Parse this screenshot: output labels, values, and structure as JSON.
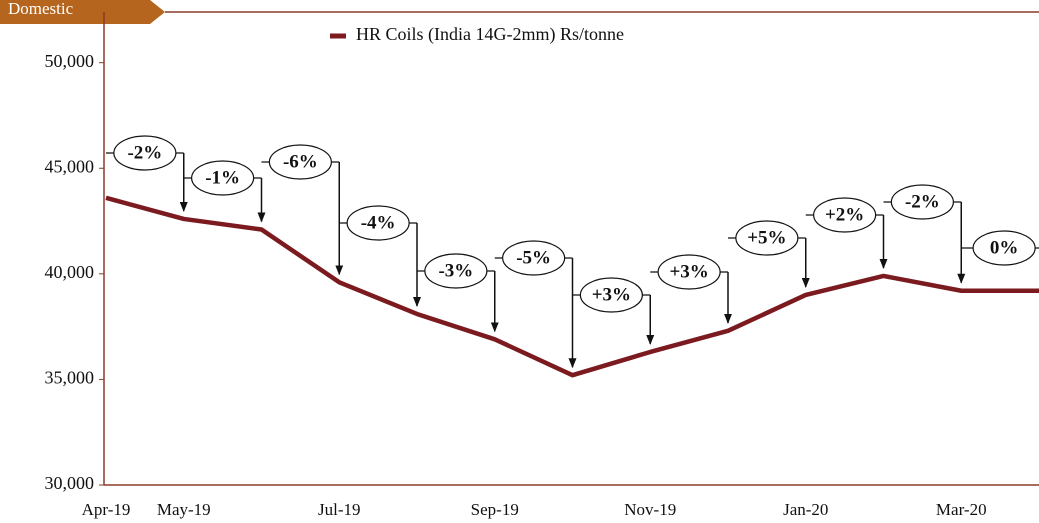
{
  "chart_data": {
    "type": "line",
    "tag": "Domestic",
    "categories": [
      "Apr-19",
      "May-19",
      null,
      "Jul-19",
      null,
      "Sep-19",
      null,
      "Nov-19",
      null,
      "Jan-20",
      null,
      "Mar-20",
      null
    ],
    "series": [
      {
        "name": "HR Coils (India 14G-2mm) Rs/tonne",
        "color": "#7b1a1f",
        "values": [
          43600,
          42600,
          42100,
          39600,
          38100,
          36900,
          35200,
          36300,
          37300,
          39000,
          39900,
          39200,
          39200
        ]
      }
    ],
    "annotations": [
      "-2%",
      "-1%",
      "-6%",
      "-4%",
      "-3%",
      "-5%",
      "+3%",
      "+3%",
      "+5%",
      "+2%",
      "-2%",
      "0%"
    ],
    "ylim": [
      30000,
      52400
    ],
    "yticks": [
      {
        "value": 30000,
        "label": "30,000"
      },
      {
        "value": 35000,
        "label": "35,000"
      },
      {
        "value": 40000,
        "label": "40,000"
      },
      {
        "value": 45000,
        "label": "45,000"
      },
      {
        "value": 50000,
        "label": "50,000"
      }
    ],
    "legend": "top"
  }
}
